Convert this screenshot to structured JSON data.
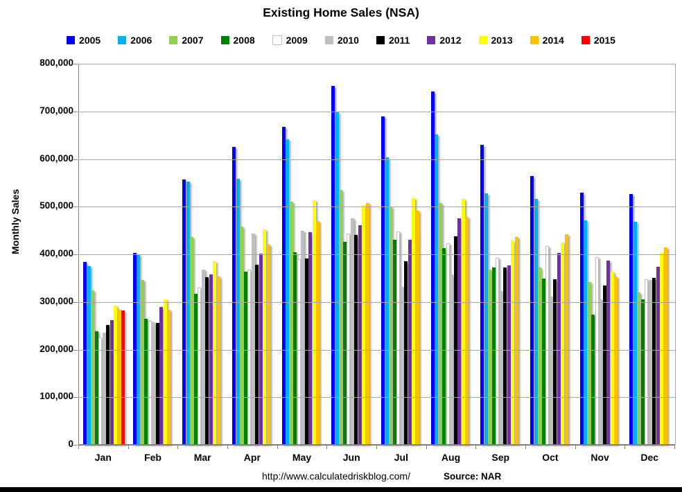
{
  "title": "Existing Home Sales (NSA)",
  "y_axis": {
    "label": "Monthly Sales"
  },
  "footer": {
    "url": "http://www.calculatedriskblog.com/",
    "source": "Source: NAR"
  },
  "chart_data": {
    "type": "bar",
    "title": "Existing Home Sales (NSA)",
    "xlabel": "",
    "ylabel": "Monthly Sales",
    "ylim": [
      0,
      800000
    ],
    "ytick_interval": 100000,
    "grid": true,
    "legend_position": "top",
    "categories": [
      "Jan",
      "Feb",
      "Mar",
      "Apr",
      "May",
      "Jun",
      "Jul",
      "Aug",
      "Sep",
      "Oct",
      "Nov",
      "Dec"
    ],
    "series": [
      {
        "name": "2005",
        "color": "#0000FF",
        "values": [
          384000,
          403000,
          557000,
          625000,
          668000,
          753000,
          690000,
          742000,
          630000,
          565000,
          530000,
          527000
        ]
      },
      {
        "name": "2006",
        "color": "#00B0F0",
        "values": [
          376000,
          400000,
          553000,
          558000,
          641000,
          698000,
          604000,
          652000,
          528000,
          517000,
          472000,
          468000
        ]
      },
      {
        "name": "2007",
        "color": "#92D050",
        "values": [
          325000,
          346000,
          437000,
          458000,
          510000,
          536000,
          500000,
          508000,
          368000,
          373000,
          342000,
          320000
        ]
      },
      {
        "name": "2008",
        "color": "#008000",
        "values": [
          238000,
          265000,
          317000,
          363000,
          404000,
          426000,
          430000,
          413000,
          372000,
          349000,
          273000,
          305000
        ]
      },
      {
        "name": "2009",
        "color": "#FFFFFF",
        "values": [
          225000,
          260000,
          330000,
          368000,
          390000,
          444000,
          448000,
          423000,
          393000,
          417000,
          394000,
          348000
        ]
      },
      {
        "name": "2010",
        "color": "#BFBFBF",
        "values": [
          236000,
          258000,
          368000,
          444000,
          449000,
          475000,
          332000,
          358000,
          323000,
          312000,
          306000,
          346000
        ]
      },
      {
        "name": "2011",
        "color": "#000000",
        "values": [
          251000,
          256000,
          352000,
          378000,
          391000,
          441000,
          385000,
          438000,
          373000,
          347000,
          334000,
          351000
        ]
      },
      {
        "name": "2012",
        "color": "#7030A0",
        "values": [
          262000,
          290000,
          358000,
          401000,
          446000,
          461000,
          431000,
          476000,
          377000,
          403000,
          387000,
          374000
        ]
      },
      {
        "name": "2013",
        "color": "#FFFF00",
        "values": [
          293000,
          306000,
          386000,
          453000,
          513000,
          503000,
          518000,
          517000,
          429000,
          425000,
          364000,
          403000
        ]
      },
      {
        "name": "2014",
        "color": "#FFC000",
        "values": [
          284000,
          284000,
          353000,
          420000,
          470000,
          507000,
          492000,
          478000,
          437000,
          442000,
          354000,
          414000
        ]
      },
      {
        "name": "2015",
        "color": "#FF0000",
        "values": [
          282000,
          null,
          null,
          null,
          null,
          null,
          null,
          null,
          null,
          null,
          null,
          null
        ]
      }
    ]
  }
}
